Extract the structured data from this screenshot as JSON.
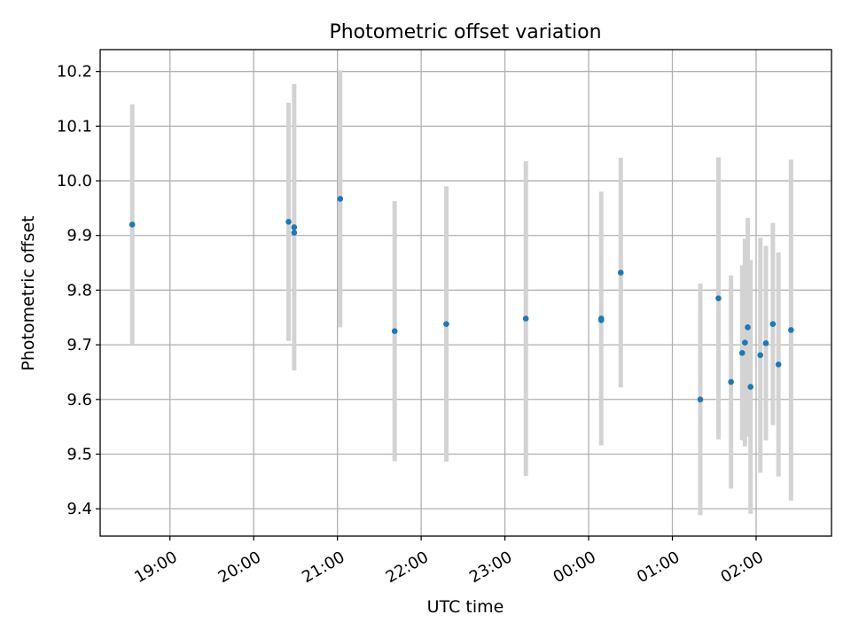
{
  "chart_data": {
    "type": "scatter",
    "title": "Photometric offset variation",
    "xlabel": "UTC time",
    "ylabel": "Photometric offset",
    "grid": true,
    "ylim": [
      9.35,
      10.24
    ],
    "xlim": [
      "18:10",
      "26:54"
    ],
    "yticks": [
      "9.4",
      "9.5",
      "9.6",
      "9.7",
      "9.8",
      "9.9",
      "10.0",
      "10.1",
      "10.2"
    ],
    "xticks": [
      "19:00",
      "20:00",
      "21:00",
      "22:00",
      "23:00",
      "00:00",
      "01:00",
      "02:00"
    ],
    "colors": {
      "point": "#1f77b4",
      "errorbar": "#d3d3d3",
      "grid": "#b0b0b0"
    },
    "points": [
      {
        "x": "18:33",
        "y": 9.92,
        "yerr": 0.22
      },
      {
        "x": "20:25",
        "y": 9.925,
        "yerr": 0.218
      },
      {
        "x": "20:29",
        "y": 9.915,
        "yerr": 0.262
      },
      {
        "x": "20:29",
        "y": 9.905,
        "yerr": 0.0
      },
      {
        "x": "21:02",
        "y": 9.967,
        "yerr": 0.235
      },
      {
        "x": "21:41",
        "y": 9.725,
        "yerr": 0.238
      },
      {
        "x": "22:18",
        "y": 9.738,
        "yerr": 0.252
      },
      {
        "x": "23:15",
        "y": 9.748,
        "yerr": 0.288
      },
      {
        "x": "00:09",
        "y": 9.745,
        "yerr": 0.0
      },
      {
        "x": "00:09",
        "y": 9.748,
        "yerr": 0.232
      },
      {
        "x": "00:23",
        "y": 9.832,
        "yerr": 0.21
      },
      {
        "x": "01:20",
        "y": 9.6,
        "yerr": 0.212
      },
      {
        "x": "01:33",
        "y": 9.785,
        "yerr": 0.258
      },
      {
        "x": "01:42",
        "y": 9.632,
        "yerr": 0.195
      },
      {
        "x": "01:50",
        "y": 9.685,
        "yerr": 0.16
      },
      {
        "x": "01:52",
        "y": 9.704,
        "yerr": 0.19
      },
      {
        "x": "01:54",
        "y": 9.732,
        "yerr": 0.2
      },
      {
        "x": "01:56",
        "y": 9.623,
        "yerr": 0.232
      },
      {
        "x": "02:03",
        "y": 9.681,
        "yerr": 0.215
      },
      {
        "x": "02:07",
        "y": 9.703,
        "yerr": 0.178
      },
      {
        "x": "02:12",
        "y": 9.738,
        "yerr": 0.185
      },
      {
        "x": "02:16",
        "y": 9.664,
        "yerr": 0.205
      },
      {
        "x": "02:25",
        "y": 9.727,
        "yerr": 0.312
      }
    ]
  }
}
